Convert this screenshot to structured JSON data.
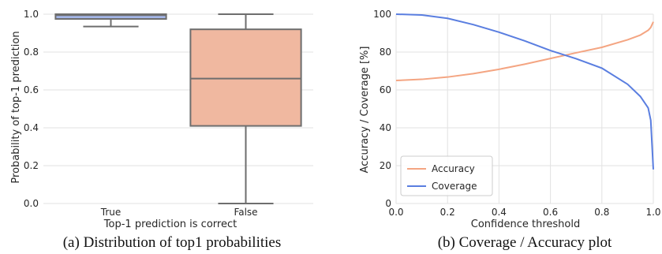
{
  "chart_data": [
    {
      "type": "box",
      "caption": "(a) Distribution of top1 probabilities",
      "xlabel": "Top-1 prediction is correct",
      "ylabel": "Probability of top-1 prediction",
      "ylim": [
        0,
        1.0
      ],
      "yticks": [
        0.0,
        0.2,
        0.4,
        0.6,
        0.8,
        1.0
      ],
      "grid": "horizontal",
      "categories": [
        "True",
        "False"
      ],
      "boxes": [
        {
          "category": "True",
          "whisker_low": 0.935,
          "q1": 0.975,
          "median": 0.995,
          "q3": 1.0,
          "whisker_high": 1.0,
          "color": "#a4b6e8"
        },
        {
          "category": "False",
          "whisker_low": 0.0,
          "q1": 0.41,
          "median": 0.66,
          "q3": 0.92,
          "whisker_high": 1.0,
          "color": "#f0b8a0"
        }
      ]
    },
    {
      "type": "line",
      "caption": "(b) Coverage / Accuracy plot",
      "xlabel": "Confidence threshold",
      "ylabel": "Accuracy / Coverage [%]",
      "xlim": [
        0.0,
        1.0
      ],
      "ylim": [
        0,
        100
      ],
      "xticks": [
        0.0,
        0.2,
        0.4,
        0.6,
        0.8,
        1.0
      ],
      "yticks": [
        0,
        20,
        40,
        60,
        80,
        100
      ],
      "grid": "both",
      "legend": "lower-left",
      "x": [
        0.0,
        0.1,
        0.2,
        0.3,
        0.4,
        0.5,
        0.6,
        0.7,
        0.8,
        0.9,
        0.95,
        0.98,
        0.99,
        1.0
      ],
      "series": [
        {
          "name": "Accuracy",
          "color": "#f4a582",
          "values": [
            65.0,
            65.6,
            66.8,
            68.6,
            70.9,
            73.6,
            76.6,
            79.6,
            82.5,
            86.5,
            89.0,
            91.5,
            93.0,
            96.0
          ]
        },
        {
          "name": "Coverage",
          "color": "#5a7ee0",
          "values": [
            100.0,
            99.6,
            97.8,
            94.5,
            90.5,
            85.9,
            80.8,
            76.5,
            71.5,
            63.0,
            56.5,
            50.5,
            44.0,
            18.0
          ]
        }
      ]
    }
  ]
}
